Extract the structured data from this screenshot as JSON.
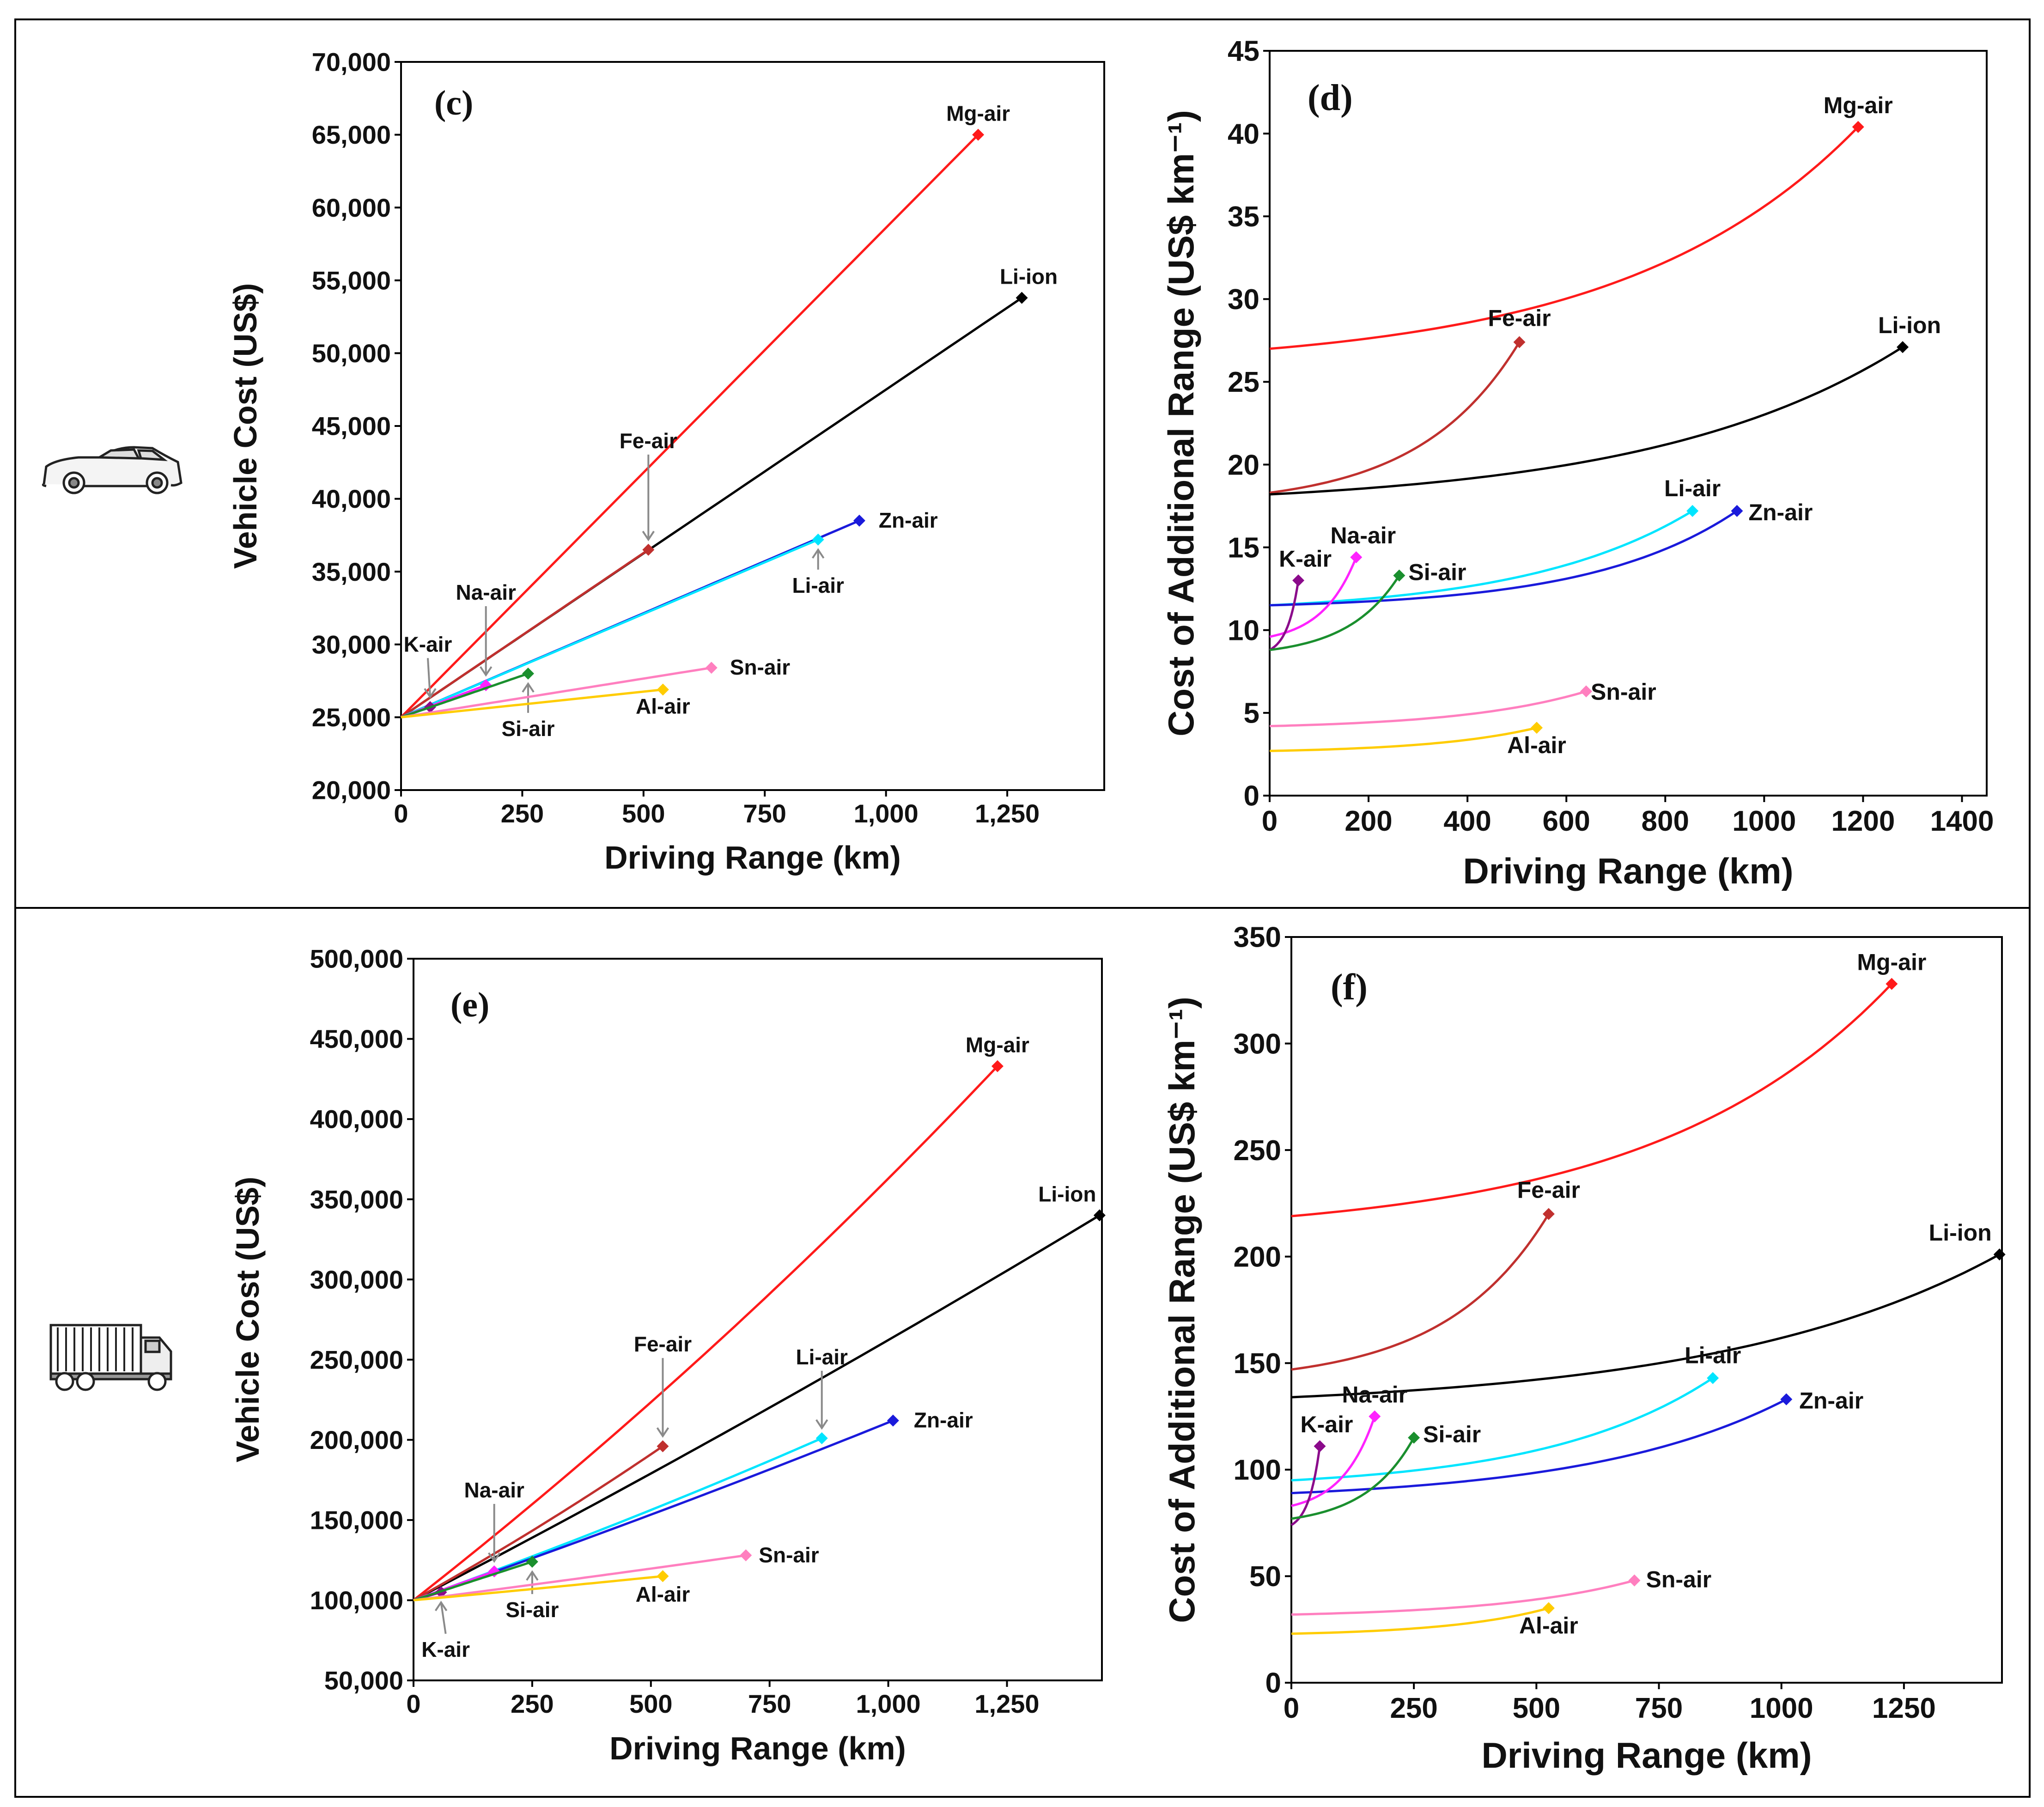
{
  "chart_data": [
    {
      "id": "c",
      "type": "line",
      "panel_label": "(c)",
      "xlabel": "Driving Range (km)",
      "ylabel": "Vehicle Cost (US$)",
      "xlim": [
        0,
        1450
      ],
      "ylim": [
        20000,
        70000
      ],
      "xticks": [
        0,
        250,
        500,
        750,
        1000,
        1250
      ],
      "xtick_labels": [
        "0",
        "250",
        "500",
        "750",
        "1,000",
        "1,250"
      ],
      "yticks": [
        20000,
        25000,
        30000,
        35000,
        40000,
        45000,
        50000,
        55000,
        60000,
        65000,
        70000
      ],
      "ytick_labels": [
        "20,000",
        "25,000",
        "30,000",
        "35,000",
        "40,000",
        "45,000",
        "50,000",
        "55,000",
        "60,000",
        "65,000",
        "70,000"
      ],
      "series": [
        {
          "name": "Mg-air",
          "color": "#ff1a1a",
          "start": [
            0,
            25000
          ],
          "end": [
            1190,
            65000
          ],
          "curv": 0
        },
        {
          "name": "Li-ion",
          "color": "#000000",
          "start": [
            0,
            25000
          ],
          "end": [
            1280,
            53800
          ],
          "curv": 0
        },
        {
          "name": "Fe-air",
          "color": "#c0302e",
          "start": [
            0,
            25000
          ],
          "end": [
            510,
            36500
          ],
          "curv": 0
        },
        {
          "name": "Zn-air",
          "color": "#1a1adb",
          "start": [
            0,
            25000
          ],
          "end": [
            945,
            38500
          ],
          "curv": 0
        },
        {
          "name": "Li-air",
          "color": "#00e5ff",
          "start": [
            0,
            25000
          ],
          "end": [
            860,
            37200
          ],
          "curv": 0
        },
        {
          "name": "Na-air",
          "color": "#ff22ff",
          "start": [
            0,
            25000
          ],
          "end": [
            175,
            27200
          ],
          "curv": 0
        },
        {
          "name": "K-air",
          "color": "#8b0a8b",
          "start": [
            0,
            25000
          ],
          "end": [
            60,
            25700
          ],
          "curv": 0
        },
        {
          "name": "Si-air",
          "color": "#1a8f2e",
          "start": [
            0,
            25000
          ],
          "end": [
            262,
            28000
          ],
          "curv": 0
        },
        {
          "name": "Sn-air",
          "color": "#ff7fbf",
          "start": [
            0,
            25000
          ],
          "end": [
            640,
            28400
          ],
          "curv": 0
        },
        {
          "name": "Al-air",
          "color": "#ffcc00",
          "start": [
            0,
            25000
          ],
          "end": [
            540,
            26900
          ],
          "curv": 0
        }
      ]
    },
    {
      "id": "d",
      "type": "line",
      "panel_label": "(d)",
      "xlabel": "Driving Range (km)",
      "ylabel": "Cost of Additional Range (US$ km⁻¹)",
      "xlim": [
        0,
        1450
      ],
      "ylim": [
        0,
        45
      ],
      "xticks": [
        0,
        200,
        400,
        600,
        800,
        1000,
        1200,
        1400
      ],
      "xtick_labels": [
        "0",
        "200",
        "400",
        "600",
        "800",
        "1000",
        "1200",
        "1400"
      ],
      "yticks": [
        0,
        5,
        10,
        15,
        20,
        25,
        30,
        35,
        40,
        45
      ],
      "ytick_labels": [
        "0",
        "5",
        "10",
        "15",
        "20",
        "25",
        "30",
        "35",
        "40",
        "45"
      ],
      "series": [
        {
          "name": "Mg-air",
          "color": "#ff1a1a",
          "start": [
            0,
            27
          ],
          "end": [
            1190,
            40.4
          ],
          "curv": 2.5
        },
        {
          "name": "Fe-air",
          "color": "#c0302e",
          "start": [
            0,
            18.3
          ],
          "end": [
            505,
            27.4
          ],
          "curv": 2.5
        },
        {
          "name": "Li-ion",
          "color": "#000000",
          "start": [
            0,
            18.2
          ],
          "end": [
            1280,
            27.1
          ],
          "curv": 2.5
        },
        {
          "name": "Li-air",
          "color": "#00e5ff",
          "start": [
            0,
            11.5
          ],
          "end": [
            855,
            17.2
          ],
          "curv": 2.5
        },
        {
          "name": "Zn-air",
          "color": "#1a1adb",
          "start": [
            0,
            11.5
          ],
          "end": [
            945,
            17.2
          ],
          "curv": 3.2
        },
        {
          "name": "Na-air",
          "color": "#ff22ff",
          "start": [
            0,
            9.6
          ],
          "end": [
            175,
            14.4
          ],
          "curv": 2.5
        },
        {
          "name": "K-air",
          "color": "#8b0a8b",
          "start": [
            0,
            8.8
          ],
          "end": [
            58,
            13
          ],
          "curv": 2.5
        },
        {
          "name": "Si-air",
          "color": "#1a8f2e",
          "start": [
            0,
            8.8
          ],
          "end": [
            262,
            13.3
          ],
          "curv": 2.5
        },
        {
          "name": "Sn-air",
          "color": "#ff7fbf",
          "start": [
            0,
            4.2
          ],
          "end": [
            640,
            6.3
          ],
          "curv": 2.5
        },
        {
          "name": "Al-air",
          "color": "#ffcc00",
          "start": [
            0,
            2.7
          ],
          "end": [
            540,
            4.1
          ],
          "curv": 2.5
        }
      ]
    },
    {
      "id": "e",
      "type": "line",
      "panel_label": "(e)",
      "xlabel": "Driving Range (km)",
      "ylabel": "Vehicle Cost (US$)",
      "xlim": [
        0,
        1450
      ],
      "ylim": [
        50000,
        500000
      ],
      "xticks": [
        0,
        250,
        500,
        750,
        1000,
        1250
      ],
      "xtick_labels": [
        "0",
        "250",
        "500",
        "750",
        "1,000",
        "1,250"
      ],
      "yticks": [
        50000,
        100000,
        150000,
        200000,
        250000,
        300000,
        350000,
        400000,
        450000,
        500000
      ],
      "ytick_labels": [
        "50,000",
        "100,000",
        "150,000",
        "200,000",
        "250,000",
        "300,000",
        "350,000",
        "400,000",
        "450,000",
        "500,000"
      ],
      "series": [
        {
          "name": "Mg-air",
          "color": "#ff1a1a",
          "start": [
            0,
            100000
          ],
          "end": [
            1230,
            433000
          ],
          "curv": 0.3
        },
        {
          "name": "Li-ion",
          "color": "#000000",
          "start": [
            0,
            100000
          ],
          "end": [
            1445,
            340000
          ],
          "curv": 0.15
        },
        {
          "name": "Fe-air",
          "color": "#c0302e",
          "start": [
            0,
            100000
          ],
          "end": [
            525,
            196000
          ],
          "curv": 0.2
        },
        {
          "name": "Li-air",
          "color": "#00e5ff",
          "start": [
            0,
            100000
          ],
          "end": [
            860,
            201000
          ],
          "curv": 0.2
        },
        {
          "name": "Zn-air",
          "color": "#1a1adb",
          "start": [
            0,
            100000
          ],
          "end": [
            1010,
            212000
          ],
          "curv": 0.15
        },
        {
          "name": "Na-air",
          "color": "#ff22ff",
          "start": [
            0,
            100000
          ],
          "end": [
            170,
            118000
          ],
          "curv": 0
        },
        {
          "name": "K-air",
          "color": "#8b0a8b",
          "start": [
            0,
            100000
          ],
          "end": [
            58,
            105000
          ],
          "curv": 0
        },
        {
          "name": "Si-air",
          "color": "#1a8f2e",
          "start": [
            0,
            100000
          ],
          "end": [
            250,
            124000
          ],
          "curv": 0
        },
        {
          "name": "Sn-air",
          "color": "#ff7fbf",
          "start": [
            0,
            100000
          ],
          "end": [
            700,
            128000
          ],
          "curv": 0.1
        },
        {
          "name": "Al-air",
          "color": "#ffcc00",
          "start": [
            0,
            100000
          ],
          "end": [
            525,
            115000
          ],
          "curv": 0.1
        }
      ]
    },
    {
      "id": "f",
      "type": "line",
      "panel_label": "(f)",
      "xlabel": "Driving Range (km)",
      "ylabel": "Cost of Additional Range (US$ km⁻¹)",
      "xlim": [
        0,
        1450
      ],
      "ylim": [
        0,
        350
      ],
      "xticks": [
        0,
        250,
        500,
        750,
        1000,
        1250
      ],
      "xtick_labels": [
        "0",
        "250",
        "500",
        "750",
        "1000",
        "1250"
      ],
      "yticks": [
        0,
        50,
        100,
        150,
        200,
        250,
        300,
        350
      ],
      "ytick_labels": [
        "0",
        "50",
        "100",
        "150",
        "200",
        "250",
        "300",
        "350"
      ],
      "series": [
        {
          "name": "Mg-air",
          "color": "#ff1a1a",
          "start": [
            0,
            219
          ],
          "end": [
            1225,
            328
          ],
          "curv": 2.5
        },
        {
          "name": "Fe-air",
          "color": "#c0302e",
          "start": [
            0,
            147
          ],
          "end": [
            525,
            220
          ],
          "curv": 2.5
        },
        {
          "name": "Li-ion",
          "color": "#000000",
          "start": [
            0,
            134
          ],
          "end": [
            1445,
            201
          ],
          "curv": 2.5
        },
        {
          "name": "Li-air",
          "color": "#00e5ff",
          "start": [
            0,
            95
          ],
          "end": [
            860,
            143
          ],
          "curv": 2.5
        },
        {
          "name": "Zn-air",
          "color": "#1a1adb",
          "start": [
            0,
            89
          ],
          "end": [
            1010,
            133
          ],
          "curv": 2.5
        },
        {
          "name": "Na-air",
          "color": "#ff22ff",
          "start": [
            0,
            83
          ],
          "end": [
            170,
            125
          ],
          "curv": 2.5
        },
        {
          "name": "K-air",
          "color": "#8b0a8b",
          "start": [
            0,
            74
          ],
          "end": [
            58,
            111
          ],
          "curv": 2.5
        },
        {
          "name": "Si-air",
          "color": "#1a8f2e",
          "start": [
            0,
            77
          ],
          "end": [
            250,
            115
          ],
          "curv": 2.5
        },
        {
          "name": "Sn-air",
          "color": "#ff7fbf",
          "start": [
            0,
            32
          ],
          "end": [
            700,
            48
          ],
          "curv": 2.5
        },
        {
          "name": "Al-air",
          "color": "#ffcc00",
          "start": [
            0,
            23
          ],
          "end": [
            525,
            35
          ],
          "curv": 2.5
        }
      ]
    }
  ],
  "icons": {
    "top": "car-icon",
    "bottom": "truck-icon"
  }
}
